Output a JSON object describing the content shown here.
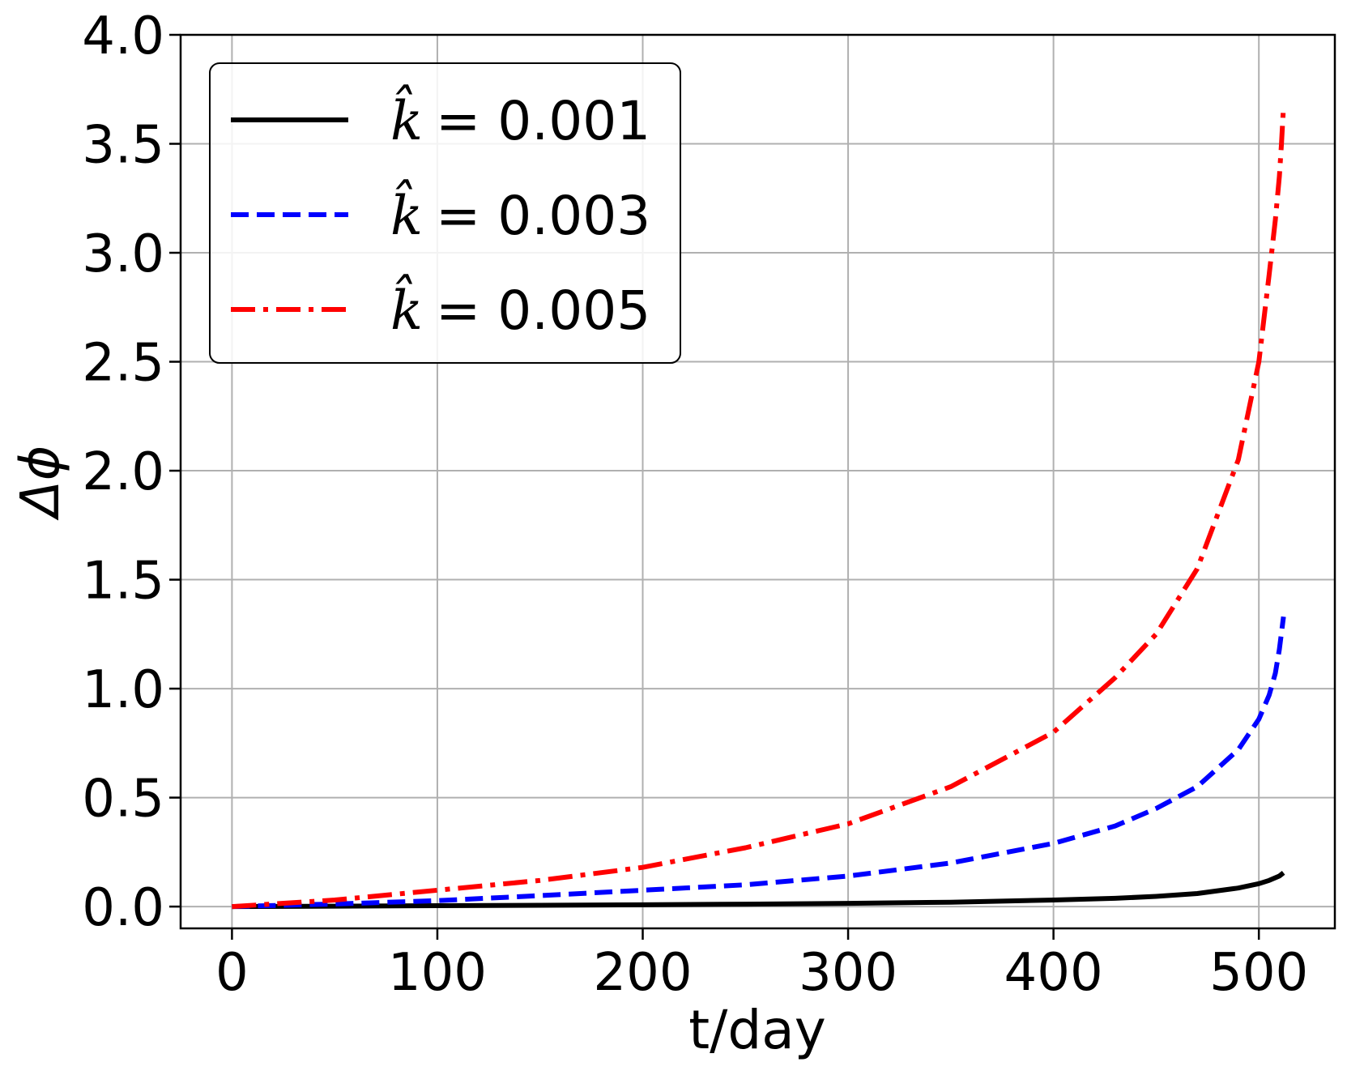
{
  "chart_data": {
    "type": "line",
    "title": "",
    "xlabel": "t/day",
    "ylabel": "Δϕ",
    "xlim": [
      -25,
      537
    ],
    "ylim": [
      -0.1,
      4.0
    ],
    "xticks": [
      0,
      100,
      200,
      300,
      400,
      500
    ],
    "xtick_labels": [
      "0",
      "100",
      "200",
      "300",
      "400",
      "500"
    ],
    "yticks": [
      0.0,
      0.5,
      1.0,
      1.5,
      2.0,
      2.5,
      3.0,
      3.5,
      4.0
    ],
    "ytick_labels": [
      "0.0",
      "0.5",
      "1.0",
      "1.5",
      "2.0",
      "2.5",
      "3.0",
      "3.5",
      "4.0"
    ],
    "grid": true,
    "legend_position": "top-left",
    "series": [
      {
        "name": "k̂ = 0.001",
        "legend_symbol": "k̂",
        "legend_value": "= 0.001",
        "color": "#000000",
        "style": "solid",
        "x": [
          0,
          50,
          100,
          150,
          200,
          250,
          300,
          350,
          400,
          430,
          450,
          470,
          490,
          500,
          505,
          510,
          512
        ],
        "y": [
          0,
          0.002,
          0.004,
          0.006,
          0.008,
          0.011,
          0.015,
          0.02,
          0.03,
          0.038,
          0.047,
          0.06,
          0.085,
          0.105,
          0.12,
          0.14,
          0.155
        ]
      },
      {
        "name": "k̂ = 0.003",
        "legend_symbol": "k̂",
        "legend_value": "= 0.003",
        "color": "#0000ff",
        "style": "dashed",
        "x": [
          0,
          50,
          100,
          150,
          200,
          250,
          300,
          350,
          400,
          430,
          450,
          470,
          490,
          500,
          505,
          508,
          510,
          512
        ],
        "y": [
          0,
          0.012,
          0.027,
          0.05,
          0.075,
          0.1,
          0.14,
          0.2,
          0.29,
          0.37,
          0.45,
          0.55,
          0.72,
          0.86,
          0.97,
          1.07,
          1.18,
          1.33
        ]
      },
      {
        "name": "k̂ = 0.005",
        "legend_symbol": "k̂",
        "legend_value": "= 0.005",
        "color": "#ff0000",
        "style": "dashdot",
        "x": [
          0,
          50,
          100,
          150,
          200,
          250,
          300,
          350,
          400,
          430,
          450,
          470,
          490,
          500,
          505,
          508,
          510,
          511,
          512
        ],
        "y": [
          0,
          0.03,
          0.075,
          0.12,
          0.18,
          0.27,
          0.38,
          0.55,
          0.8,
          1.05,
          1.25,
          1.55,
          2.05,
          2.5,
          2.9,
          3.15,
          3.35,
          3.5,
          3.67
        ]
      }
    ]
  }
}
